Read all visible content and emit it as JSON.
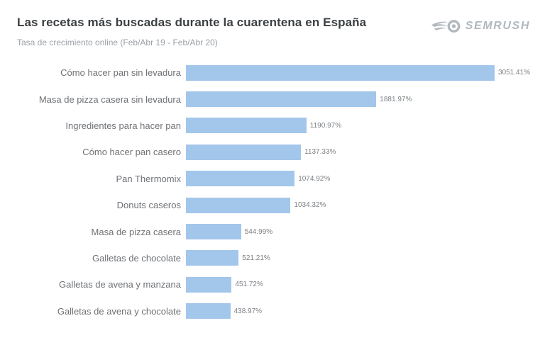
{
  "header": {
    "title": "Las recetas más buscadas durante la cuarentena en España",
    "subtitle": "Tasa de crecimiento online (Feb/Abr 19 - Feb/Abr 20)"
  },
  "logo": {
    "brand": "SEMRUSH",
    "icon": "semrush-comet-icon",
    "color": "#b2b8be"
  },
  "chart_data": {
    "type": "bar",
    "orientation": "horizontal",
    "title": "Las recetas más buscadas durante la cuarentena en España",
    "subtitle": "Tasa de crecimiento online (Feb/Abr 19 - Feb/Abr 20)",
    "xlabel": "",
    "ylabel": "",
    "xlim": [
      0,
      3051.41
    ],
    "grid": false,
    "legend": false,
    "bar_color": "#a3c6eb",
    "categories": [
      "Cómo hacer pan sin levadura",
      "Masa de pizza casera sin levadura",
      "Ingredientes para hacer pan",
      "Cómo hacer pan casero",
      "Pan Thermomix",
      "Donuts caseros",
      "Masa de pizza casera",
      "Galletas de chocolate",
      "Galletas de avena y manzana",
      "Galletas de avena y chocolate"
    ],
    "values": [
      3051.41,
      1881.97,
      1190.97,
      1137.33,
      1074.92,
      1034.32,
      544.99,
      521.21,
      451.72,
      438.97
    ],
    "value_labels": [
      "3051.41%",
      "1881.97%",
      "1190.97%",
      "1137.33%",
      "1074.92%",
      "1034.32%",
      "544.99%",
      "521.21%",
      "451.72%",
      "438.97%"
    ]
  }
}
